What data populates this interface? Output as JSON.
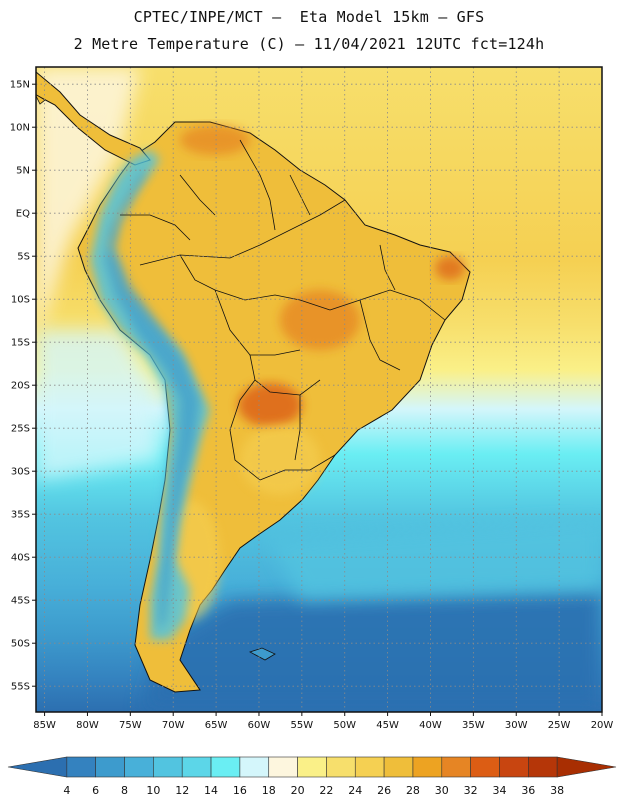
{
  "header": {
    "line1": "CPTEC/INPE/MCT –  Eta Model 15km – GFS",
    "line2": "2 Metre Temperature (C) – 11/04/2021 12UTC fct=124h"
  },
  "map": {
    "lon_range": [
      -86,
      -20
    ],
    "lat_range": [
      -58,
      17
    ],
    "lat_ticks": [
      "15N",
      "10N",
      "5N",
      "EQ",
      "5S",
      "10S",
      "15S",
      "20S",
      "25S",
      "30S",
      "35S",
      "40S",
      "45S",
      "50S",
      "55S"
    ],
    "lon_ticks": [
      "85W",
      "80W",
      "75W",
      "70W",
      "65W",
      "60W",
      "55W",
      "50W",
      "45W",
      "40W",
      "35W",
      "30W",
      "25W",
      "20W"
    ]
  },
  "colorbar": {
    "labels": [
      "4",
      "6",
      "8",
      "10",
      "12",
      "14",
      "16",
      "18",
      "20",
      "22",
      "24",
      "26",
      "28",
      "30",
      "32",
      "34",
      "36",
      "38"
    ],
    "colors": [
      "#2c6fb0",
      "#3482bf",
      "#3d9bcd",
      "#48b0d9",
      "#52c4e0",
      "#5cd6e8",
      "#6aeef3",
      "#d4f6fb",
      "#fdf6de",
      "#faf088",
      "#f7df6c",
      "#f5d052",
      "#efbe3a",
      "#eda322",
      "#e68524",
      "#dc5d14",
      "#c84510",
      "#b53608",
      "#a82e02"
    ]
  }
}
